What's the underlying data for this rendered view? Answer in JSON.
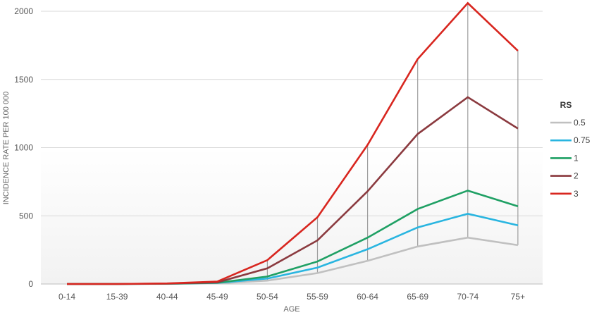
{
  "chart_data": {
    "type": "line",
    "title": "",
    "xlabel": "AGE",
    "ylabel": "INCIDENCE RATE PER 100 000",
    "categories": [
      "0-14",
      "15-39",
      "40-44",
      "45-49",
      "50-54",
      "55-59",
      "60-64",
      "65-69",
      "70-74",
      "75+"
    ],
    "yticks": [
      0,
      500,
      1000,
      1500,
      2000
    ],
    "ylim": [
      0,
      2000
    ],
    "grid": "horizontal",
    "drop_lines": true,
    "legend": {
      "title": "RS",
      "position": "right"
    },
    "series": [
      {
        "name": "0.5",
        "color": "#c0c0c0",
        "values": [
          0,
          0,
          1,
          5,
          25,
          80,
          170,
          275,
          340,
          285
        ]
      },
      {
        "name": "0.75",
        "color": "#29b5e0",
        "values": [
          0,
          0,
          2,
          8,
          40,
          120,
          255,
          415,
          515,
          430
        ]
      },
      {
        "name": "1",
        "color": "#1fa064",
        "values": [
          0,
          0,
          2,
          9,
          55,
          165,
          340,
          550,
          685,
          570
        ]
      },
      {
        "name": "2",
        "color": "#8b3a3f",
        "values": [
          0,
          0,
          3,
          12,
          115,
          320,
          680,
          1100,
          1370,
          1140
        ]
      },
      {
        "name": "3",
        "color": "#d8261f",
        "values": [
          0,
          0,
          4,
          18,
          175,
          490,
          1020,
          1650,
          2060,
          1710
        ]
      }
    ]
  }
}
